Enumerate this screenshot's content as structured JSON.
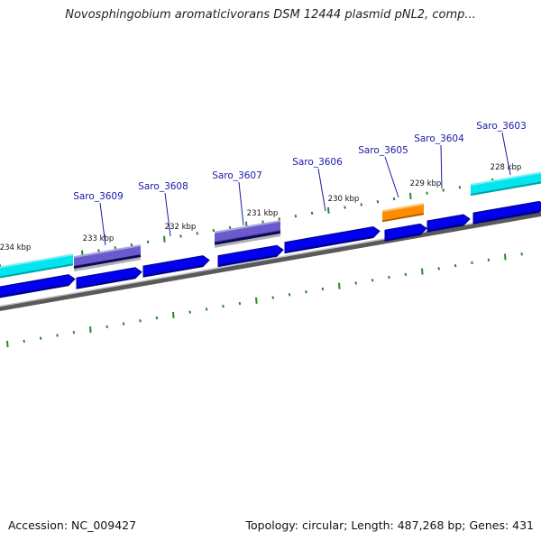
{
  "title": "Novosphingobium aromaticivorans DSM 12444 plasmid pNL2, comp...",
  "footer": {
    "accession": "Accession: NC_009427",
    "summary": "Topology: circular; Length: 487,268 bp; Genes: 431"
  },
  "colors": {
    "cds": "#0000ee",
    "cyan_feature": "#00e5ee",
    "purple_feature": "#6a5acd",
    "orange_feature": "#ff8c00",
    "backbone": "#808080",
    "tick": "#228b22",
    "gene_label": "#1a1aa6"
  },
  "scale_labels": [
    "228 kbp",
    "229 kbp",
    "230 kbp",
    "231 kbp",
    "232 kbp",
    "233 kbp",
    "234 kbp"
  ],
  "gene_labels": [
    "Saro_3603",
    "Saro_3604",
    "Saro_3605",
    "Saro_3606",
    "Saro_3607",
    "Saro_3608",
    "Saro_3609"
  ]
}
